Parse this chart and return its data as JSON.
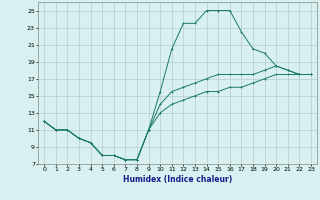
{
  "title": "",
  "xlabel": "Humidex (Indice chaleur)",
  "bg_color": "#d8f0f0",
  "grid_color": "#b8cccc",
  "line_color": "#1a7a6a",
  "xlim": [
    -0.5,
    23.5
  ],
  "ylim": [
    7,
    26
  ],
  "xticks": [
    0,
    1,
    2,
    3,
    4,
    5,
    6,
    7,
    8,
    9,
    10,
    11,
    12,
    13,
    14,
    15,
    16,
    17,
    18,
    19,
    20,
    21,
    22,
    23
  ],
  "yticks": [
    7,
    9,
    11,
    13,
    15,
    17,
    19,
    21,
    23,
    25
  ],
  "line1_x": [
    0,
    1,
    2,
    3,
    4,
    5,
    6,
    7,
    8,
    9,
    10,
    11,
    12,
    13,
    14,
    15,
    16,
    17,
    18,
    19,
    20,
    21,
    22,
    23
  ],
  "line1_y": [
    12,
    11,
    11,
    10,
    9.5,
    8,
    8,
    7.5,
    7.5,
    11,
    15.5,
    20.5,
    23.5,
    23.5,
    25,
    25,
    25,
    22.5,
    20.5,
    20,
    18.5,
    18,
    17.5,
    17.5
  ],
  "line2_x": [
    0,
    1,
    2,
    3,
    4,
    5,
    6,
    7,
    8,
    9,
    10,
    11,
    12,
    13,
    14,
    15,
    16,
    17,
    18,
    19,
    20,
    21,
    22,
    23
  ],
  "line2_y": [
    12,
    11,
    11,
    10,
    9.5,
    8,
    8,
    7.5,
    7.5,
    11,
    14,
    15.5,
    16,
    16.5,
    17,
    17.5,
    17.5,
    17.5,
    17.5,
    18,
    18.5,
    18,
    17.5,
    17.5
  ],
  "line3_x": [
    0,
    1,
    2,
    3,
    4,
    5,
    6,
    7,
    8,
    9,
    10,
    11,
    12,
    13,
    14,
    15,
    16,
    17,
    18,
    19,
    20,
    21,
    22,
    23
  ],
  "line3_y": [
    12,
    11,
    11,
    10,
    9.5,
    8,
    8,
    7.5,
    7.5,
    11,
    13,
    14,
    14.5,
    15,
    15.5,
    15.5,
    16,
    16,
    16.5,
    17,
    17.5,
    17.5,
    17.5,
    17.5
  ]
}
